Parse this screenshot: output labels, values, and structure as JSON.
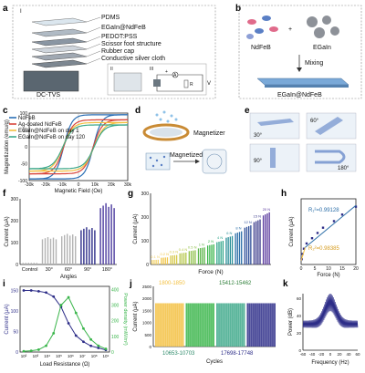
{
  "panels": {
    "a": {
      "letter": "a",
      "roman1": "I",
      "roman2": "II",
      "roman3": "III",
      "layers": [
        "PDMS",
        "EGaIn@NdFeB",
        "PEDOT:PSS",
        "Scissor foot structure",
        "Rubber cap",
        "Conductive silver cloth"
      ],
      "device_label": "DC-TVS",
      "circuit_labels": {
        "A": "A",
        "R": "R",
        "V": "V",
        "plus": "+"
      }
    },
    "b": {
      "letter": "b",
      "ndfeb": "NdFeB",
      "plus": "+",
      "egain": "EGaIn",
      "mixing": "Mixing",
      "product": "EGaIn@NdFeB"
    },
    "c": {
      "letter": "c"
    },
    "d": {
      "letter": "d",
      "magnetizer": "Magnetizer",
      "magnetized": "Magnetized"
    },
    "e": {
      "letter": "e",
      "angles": [
        "30°",
        "60°",
        "90°",
        "180°"
      ]
    },
    "f": {
      "letter": "f"
    },
    "g": {
      "letter": "g"
    },
    "h": {
      "letter": "h"
    },
    "i": {
      "letter": "i"
    },
    "j": {
      "letter": "j"
    },
    "k": {
      "letter": "k"
    }
  },
  "chart_data": [
    {
      "id": "c",
      "type": "line",
      "xlabel": "Magnetic Field (Oe)",
      "ylabel": "Magnetization (emu/g)",
      "xlim": [
        -30000,
        30000
      ],
      "ylim": [
        -100,
        100
      ],
      "xticks": [
        "-30k",
        "-20k",
        "-10k",
        "0",
        "10k",
        "20k",
        "30k"
      ],
      "yticks": [
        "-100",
        "-50",
        "0",
        "50",
        "100"
      ],
      "legend": [
        "NdFeB",
        "Ag-coated NdFeB",
        "EGaIn@NdFeB on day 1",
        "EGaIn@NdFeB on day 120"
      ],
      "colors": [
        "#2b6fb5",
        "#d9453b",
        "#f3bf3f",
        "#3da88a"
      ],
      "series": [
        {
          "name": "NdFeB",
          "ms": 95,
          "hc": 9000,
          "w": 5000
        },
        {
          "name": "Ag-coated NdFeB",
          "ms": 80,
          "hc": 9000,
          "w": 5500
        },
        {
          "name": "EGaIn@NdFeB on day 1",
          "ms": 72,
          "hc": 9500,
          "w": 6000
        },
        {
          "name": "EGaIn@NdFeB on day 120",
          "ms": 65,
          "hc": 9500,
          "w": 6000
        }
      ]
    },
    {
      "id": "f",
      "type": "bar",
      "xlabel": "Angles",
      "ylabel": "Current (μA)",
      "ylim": [
        0,
        300
      ],
      "yticks": [
        "0",
        "100",
        "200",
        "300"
      ],
      "categories": [
        "Control",
        "30°",
        "60°",
        "90°",
        "180°"
      ],
      "values": [
        8,
        125,
        140,
        170,
        280
      ],
      "colors": [
        "#b3b3b3",
        "#b3b3b3",
        "#b3b3b3",
        "#2d2d88",
        "#4a3a9e"
      ]
    },
    {
      "id": "g",
      "type": "bar",
      "xlabel": "Force (N)",
      "ylabel": "Current (μA)",
      "ylim": [
        0,
        300
      ],
      "yticks": [
        "0",
        "100",
        "200",
        "300"
      ],
      "categories": [
        "0.1 N",
        "0.2 N",
        "0.3 N",
        "0.4 N",
        "0.5 N",
        "1 N",
        "2 N",
        "4 N",
        "6 N",
        "8 N",
        "12 N",
        "15 N",
        "20 N"
      ],
      "values": [
        20,
        30,
        40,
        50,
        60,
        72,
        85,
        100,
        120,
        140,
        165,
        190,
        220
      ]
    },
    {
      "id": "h",
      "type": "scatter",
      "xlabel": "Force (N)",
      "ylabel": "Current (μA)",
      "xlim": [
        0,
        20
      ],
      "xticks": [
        "0",
        "5",
        "10",
        "15",
        "20"
      ],
      "annotations": [
        "R₁²=0.99128",
        "R₂²=0.98385"
      ],
      "x": [
        0.2,
        0.5,
        1,
        2,
        4,
        6,
        8,
        12,
        15,
        20
      ],
      "y": [
        20,
        40,
        60,
        80,
        100,
        120,
        140,
        165,
        190,
        220
      ]
    },
    {
      "id": "i",
      "type": "line",
      "xlabel": "Load Resistance (Ω)",
      "ylabel": "Current (μA)",
      "y2label": "Power density (mW/m²)",
      "xticks": [
        "10²",
        "10³",
        "10⁴",
        "10⁵",
        "10⁶",
        "10⁷",
        "10⁸",
        "10⁹"
      ],
      "yticks": [
        "0",
        "50",
        "100",
        "150"
      ],
      "y2ticks": [
        "0",
        "100",
        "200",
        "300",
        "400"
      ],
      "series": [
        {
          "name": "Current",
          "color": "#2d2d88",
          "values": [
            150,
            150,
            148,
            145,
            135,
            110,
            70,
            40,
            25,
            15,
            10,
            5
          ]
        },
        {
          "name": "Power density",
          "color": "#39b54a",
          "values": [
            5,
            8,
            15,
            40,
            120,
            300,
            350,
            250,
            150,
            80,
            40,
            20
          ]
        }
      ]
    },
    {
      "id": "j",
      "type": "area",
      "xlabel": "Cycles",
      "ylabel": "Current (μA)",
      "ylim": [
        0,
        2500
      ],
      "yticks": [
        "0",
        "500",
        "1000",
        "1500",
        "2000",
        "2500"
      ],
      "segments": [
        {
          "label": "1800-1850",
          "color": "#f3bf3f"
        },
        {
          "label": "15412-15462",
          "color": "#39b54a"
        },
        {
          "label": "10653-10703",
          "color": "#3da88a"
        },
        {
          "label": "17698-17748",
          "color": "#2d2d88"
        }
      ]
    },
    {
      "id": "k",
      "type": "line",
      "xlabel": "Frequency (Hz)",
      "ylabel": "Power (dB)",
      "xlim": [
        -60,
        60
      ],
      "xticks": [
        "-60",
        "-40",
        "-20",
        "0",
        "20",
        "40",
        "60"
      ],
      "yticks": [
        "0",
        "20",
        "40",
        "60"
      ],
      "color": "#2d2d88"
    }
  ]
}
